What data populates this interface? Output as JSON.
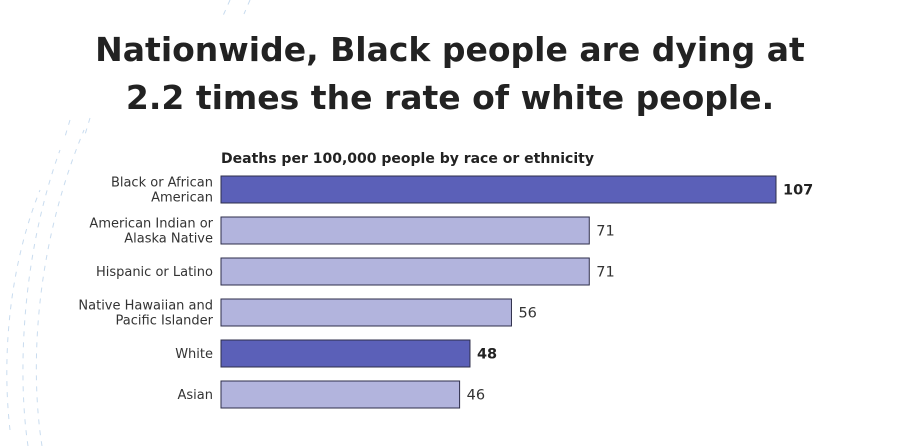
{
  "headline": {
    "line1": "Nationwide, Black people are dying at",
    "line2": "2.2 times the rate of white people."
  },
  "colors": {
    "highlight_bar": "#5b60b8",
    "normal_bar": "#b2b4dd",
    "bar_stroke": "#2e2e4a",
    "decoration": "#c9dcef"
  },
  "chart_data": {
    "type": "bar",
    "orientation": "horizontal",
    "title": "Deaths per 100,000 people by race or ethnicity",
    "categories": [
      [
        "Black or African",
        "American"
      ],
      [
        "American Indian or",
        "Alaska Native"
      ],
      [
        "Hispanic or Latino"
      ],
      [
        "Native Hawaiian and",
        "Pacific Islander"
      ],
      [
        "White"
      ],
      [
        "Asian"
      ]
    ],
    "values": [
      107,
      71,
      71,
      56,
      48,
      46
    ],
    "highlighted": [
      true,
      false,
      false,
      false,
      true,
      false
    ],
    "xlim": [
      0,
      107
    ],
    "grid": false,
    "legend": "none"
  }
}
